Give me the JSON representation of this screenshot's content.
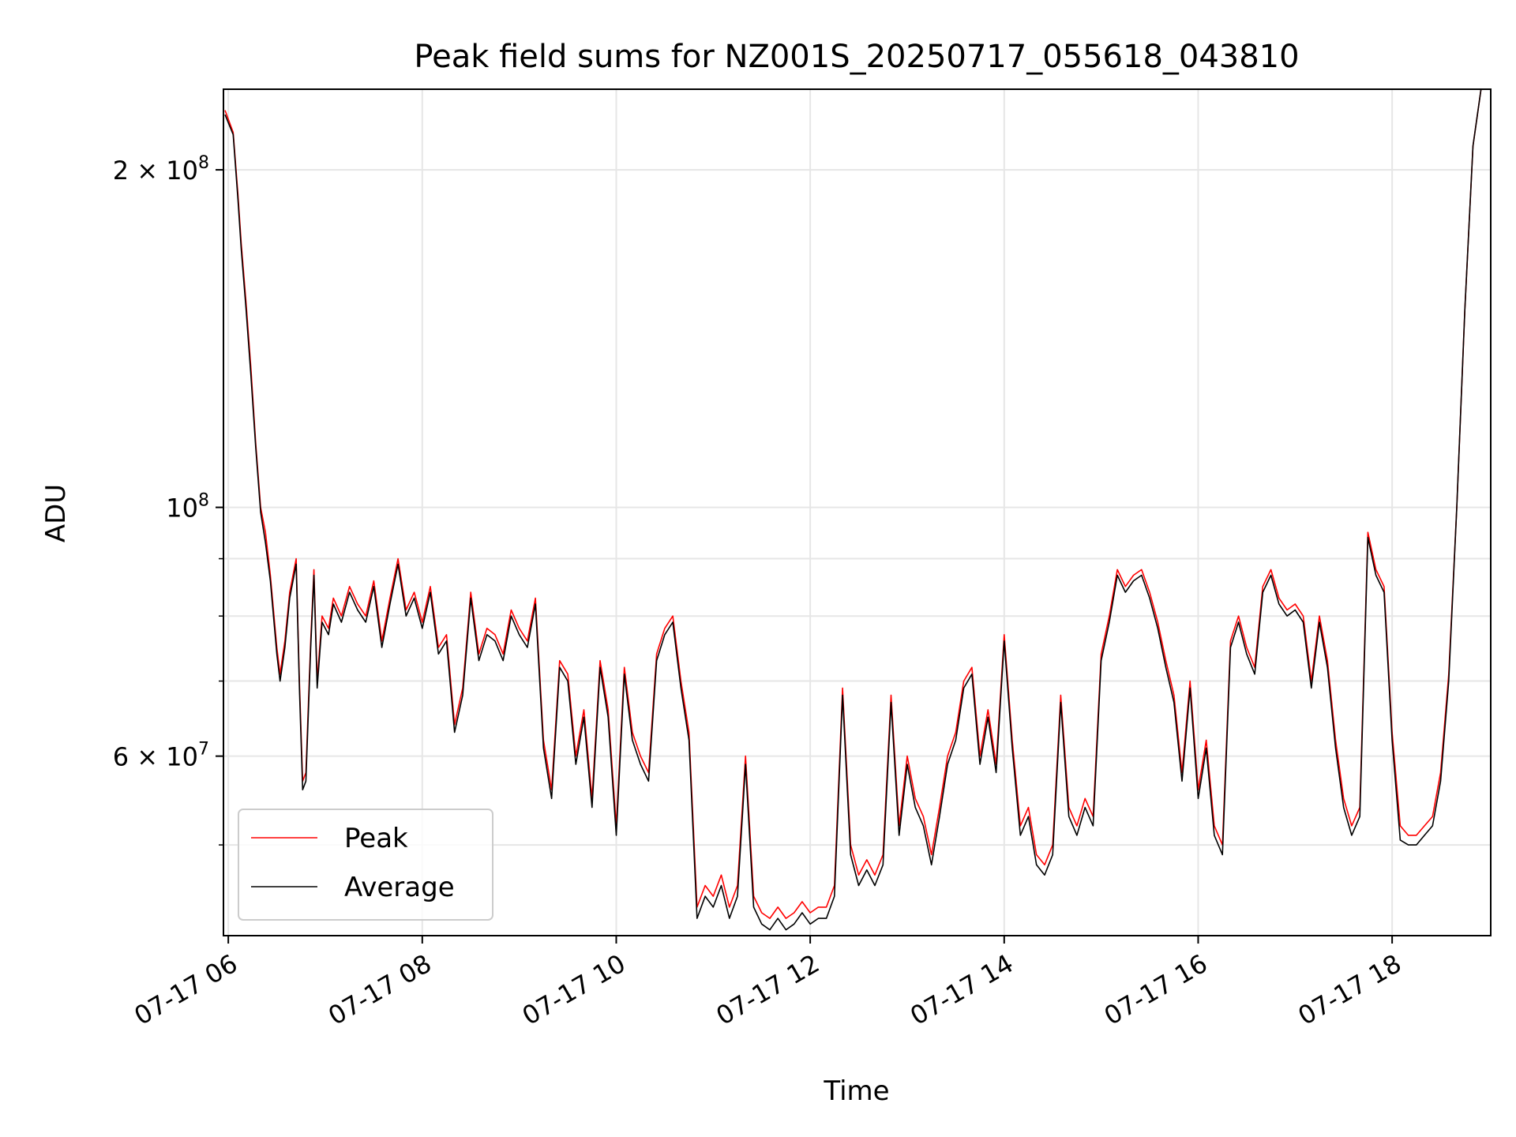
{
  "chart_data": {
    "type": "line",
    "title": "Peak field sums for NZ001S_20250717_055618_043810",
    "xlabel": "Time",
    "ylabel": "ADU",
    "y_scale": "log",
    "ylim": [
      41500000,
      236000000
    ],
    "xlim": [
      "2025-07-17T05:57",
      "2025-07-17T19:01"
    ],
    "grid": true,
    "legend": {
      "placement": "lower-left",
      "entries": [
        "Peak",
        "Average"
      ]
    },
    "x_ticks": [
      {
        "value": "2025-07-17T06:00",
        "label": "07-17 06"
      },
      {
        "value": "2025-07-17T08:00",
        "label": "07-17 08"
      },
      {
        "value": "2025-07-17T10:00",
        "label": "07-17 10"
      },
      {
        "value": "2025-07-17T12:00",
        "label": "07-17 12"
      },
      {
        "value": "2025-07-17T14:00",
        "label": "07-17 14"
      },
      {
        "value": "2025-07-17T16:00",
        "label": "07-17 16"
      },
      {
        "value": "2025-07-17T18:00",
        "label": "07-17 18"
      }
    ],
    "y_ticks": [
      {
        "value": 200000000,
        "base": "2 × 10",
        "exp": "8"
      },
      {
        "value": 100000000,
        "base": "10",
        "exp": "8"
      },
      {
        "value": 60000000,
        "base": "6 × 10",
        "exp": "7"
      }
    ],
    "y_minor_ticks": [
      50000000,
      70000000,
      80000000,
      90000000
    ],
    "x": [
      "05:58",
      "06:03",
      "06:06",
      "06:08",
      "06:11",
      "06:14",
      "06:17",
      "06:20",
      "06:23",
      "06:26",
      "06:30",
      "06:32",
      "06:35",
      "06:38",
      "06:42",
      "06:44",
      "06:46",
      "06:48",
      "06:51",
      "06:53",
      "06:55",
      "06:58",
      "07:02",
      "07:05",
      "07:10",
      "07:15",
      "07:20",
      "07:25",
      "07:30",
      "07:35",
      "07:40",
      "07:45",
      "07:50",
      "07:55",
      "08:00",
      "08:05",
      "08:10",
      "08:15",
      "08:20",
      "08:25",
      "08:30",
      "08:35",
      "08:40",
      "08:45",
      "08:50",
      "08:55",
      "09:00",
      "09:05",
      "09:10",
      "09:15",
      "09:20",
      "09:25",
      "09:30",
      "09:35",
      "09:40",
      "09:45",
      "09:50",
      "09:55",
      "10:00",
      "10:05",
      "10:10",
      "10:15",
      "10:20",
      "10:25",
      "10:30",
      "10:35",
      "10:40",
      "10:45",
      "10:50",
      "10:55",
      "11:00",
      "11:05",
      "11:10",
      "11:15",
      "11:20",
      "11:25",
      "11:30",
      "11:35",
      "11:40",
      "11:45",
      "11:50",
      "11:55",
      "12:00",
      "12:05",
      "12:10",
      "12:15",
      "12:20",
      "12:25",
      "12:30",
      "12:35",
      "12:40",
      "12:45",
      "12:50",
      "12:55",
      "13:00",
      "13:05",
      "13:10",
      "13:15",
      "13:20",
      "13:25",
      "13:30",
      "13:35",
      "13:40",
      "13:45",
      "13:50",
      "13:55",
      "14:00",
      "14:05",
      "14:10",
      "14:15",
      "14:20",
      "14:25",
      "14:30",
      "14:35",
      "14:40",
      "14:45",
      "14:50",
      "14:55",
      "15:00",
      "15:05",
      "15:10",
      "15:15",
      "15:20",
      "15:25",
      "15:30",
      "15:35",
      "15:40",
      "15:45",
      "15:50",
      "15:55",
      "16:00",
      "16:05",
      "16:10",
      "16:15",
      "16:20",
      "16:25",
      "16:30",
      "16:35",
      "16:40",
      "16:45",
      "16:50",
      "16:55",
      "17:00",
      "17:05",
      "17:10",
      "17:15",
      "17:20",
      "17:25",
      "17:30",
      "17:35",
      "17:40",
      "17:45",
      "17:50",
      "17:55",
      "18:00",
      "18:05",
      "18:10",
      "18:15",
      "18:20",
      "18:25",
      "18:30",
      "18:35",
      "18:40",
      "18:45",
      "18:50",
      "18:55",
      "19:00"
    ],
    "series": [
      {
        "name": "Peak",
        "color": "#ff0000",
        "values": [
          226000000,
          216000000,
          190000000,
          172000000,
          152000000,
          133000000,
          114000000,
          100000000,
          95000000,
          87000000,
          75000000,
          71000000,
          76000000,
          84000000,
          90000000,
          70000000,
          57000000,
          58000000,
          76000000,
          88000000,
          70000000,
          80000000,
          78000000,
          83000000,
          80000000,
          85000000,
          82000000,
          80000000,
          86000000,
          76000000,
          83000000,
          90000000,
          81000000,
          84000000,
          79000000,
          85000000,
          75000000,
          77000000,
          64000000,
          69000000,
          84000000,
          74000000,
          78000000,
          77000000,
          74000000,
          81000000,
          78000000,
          76000000,
          83000000,
          62000000,
          56000000,
          73000000,
          71000000,
          60000000,
          66000000,
          55000000,
          73000000,
          66000000,
          52000000,
          72000000,
          63000000,
          60000000,
          58000000,
          74000000,
          78000000,
          80000000,
          70000000,
          63000000,
          44000000,
          46000000,
          45000000,
          47000000,
          44000000,
          46000000,
          60000000,
          45000000,
          43500000,
          43000000,
          44000000,
          43000000,
          43500000,
          44500000,
          43500000,
          44000000,
          44000000,
          46000000,
          69000000,
          50000000,
          47000000,
          48500000,
          47000000,
          49000000,
          68000000,
          52000000,
          60000000,
          55000000,
          53000000,
          49000000,
          54000000,
          60000000,
          63000000,
          70000000,
          72000000,
          60000000,
          66000000,
          59000000,
          77000000,
          62000000,
          52000000,
          54000000,
          49000000,
          48000000,
          50000000,
          68000000,
          54000000,
          52000000,
          55000000,
          53000000,
          74000000,
          80000000,
          88000000,
          85000000,
          87000000,
          88000000,
          84000000,
          79000000,
          73000000,
          68000000,
          58000000,
          70000000,
          56000000,
          62000000,
          52000000,
          50000000,
          76000000,
          80000000,
          75000000,
          72000000,
          85000000,
          88000000,
          83000000,
          81000000,
          82000000,
          80000000,
          70000000,
          80000000,
          73000000,
          62000000,
          55000000,
          52000000,
          54000000,
          95000000,
          88000000,
          85000000,
          63000000,
          52000000,
          51000000,
          51000000,
          52000000,
          53000000,
          58000000,
          71000000,
          100000000,
          150000000,
          210000000,
          236000000,
          236000000
        ]
      },
      {
        "name": "Average",
        "color": "#000000",
        "values": [
          224000000,
          215000000,
          188000000,
          170000000,
          150000000,
          131000000,
          113000000,
          99000000,
          93000000,
          86000000,
          74000000,
          70000000,
          75000000,
          83000000,
          89000000,
          69000000,
          56000000,
          57000000,
          75000000,
          87000000,
          69000000,
          79000000,
          77000000,
          82000000,
          79000000,
          84000000,
          81000000,
          79000000,
          85000000,
          75000000,
          82000000,
          89000000,
          80000000,
          83000000,
          78000000,
          84000000,
          74000000,
          76000000,
          63000000,
          68000000,
          83000000,
          73000000,
          77000000,
          76000000,
          73000000,
          80000000,
          77000000,
          75000000,
          82000000,
          61000000,
          55000000,
          72000000,
          70000000,
          59000000,
          65000000,
          54000000,
          72000000,
          65000000,
          51000000,
          71000000,
          62000000,
          59000000,
          57000000,
          73000000,
          77000000,
          79000000,
          69000000,
          62000000,
          43000000,
          45000000,
          44000000,
          46000000,
          43000000,
          45000000,
          59000000,
          44000000,
          42500000,
          42000000,
          43000000,
          42000000,
          42500000,
          43500000,
          42500000,
          43000000,
          43000000,
          45000000,
          68000000,
          49000000,
          46000000,
          47500000,
          46000000,
          48000000,
          67000000,
          51000000,
          59000000,
          54000000,
          52000000,
          48000000,
          53000000,
          59000000,
          62000000,
          69000000,
          71000000,
          59000000,
          65000000,
          58000000,
          76000000,
          61000000,
          51000000,
          53000000,
          48000000,
          47000000,
          49000000,
          67000000,
          53000000,
          51000000,
          54000000,
          52000000,
          73000000,
          79000000,
          87000000,
          84000000,
          86000000,
          87000000,
          83000000,
          78000000,
          72000000,
          67000000,
          57000000,
          69000000,
          55000000,
          61000000,
          51000000,
          49000000,
          75000000,
          79000000,
          74000000,
          71000000,
          84000000,
          87000000,
          82000000,
          80000000,
          81000000,
          79000000,
          69000000,
          79000000,
          72000000,
          61000000,
          54000000,
          51000000,
          53000000,
          94000000,
          87000000,
          84000000,
          62000000,
          50500000,
          50000000,
          50000000,
          51000000,
          52000000,
          57000000,
          70000000,
          100000000,
          150000000,
          210000000,
          236000000,
          236000000
        ]
      }
    ]
  }
}
